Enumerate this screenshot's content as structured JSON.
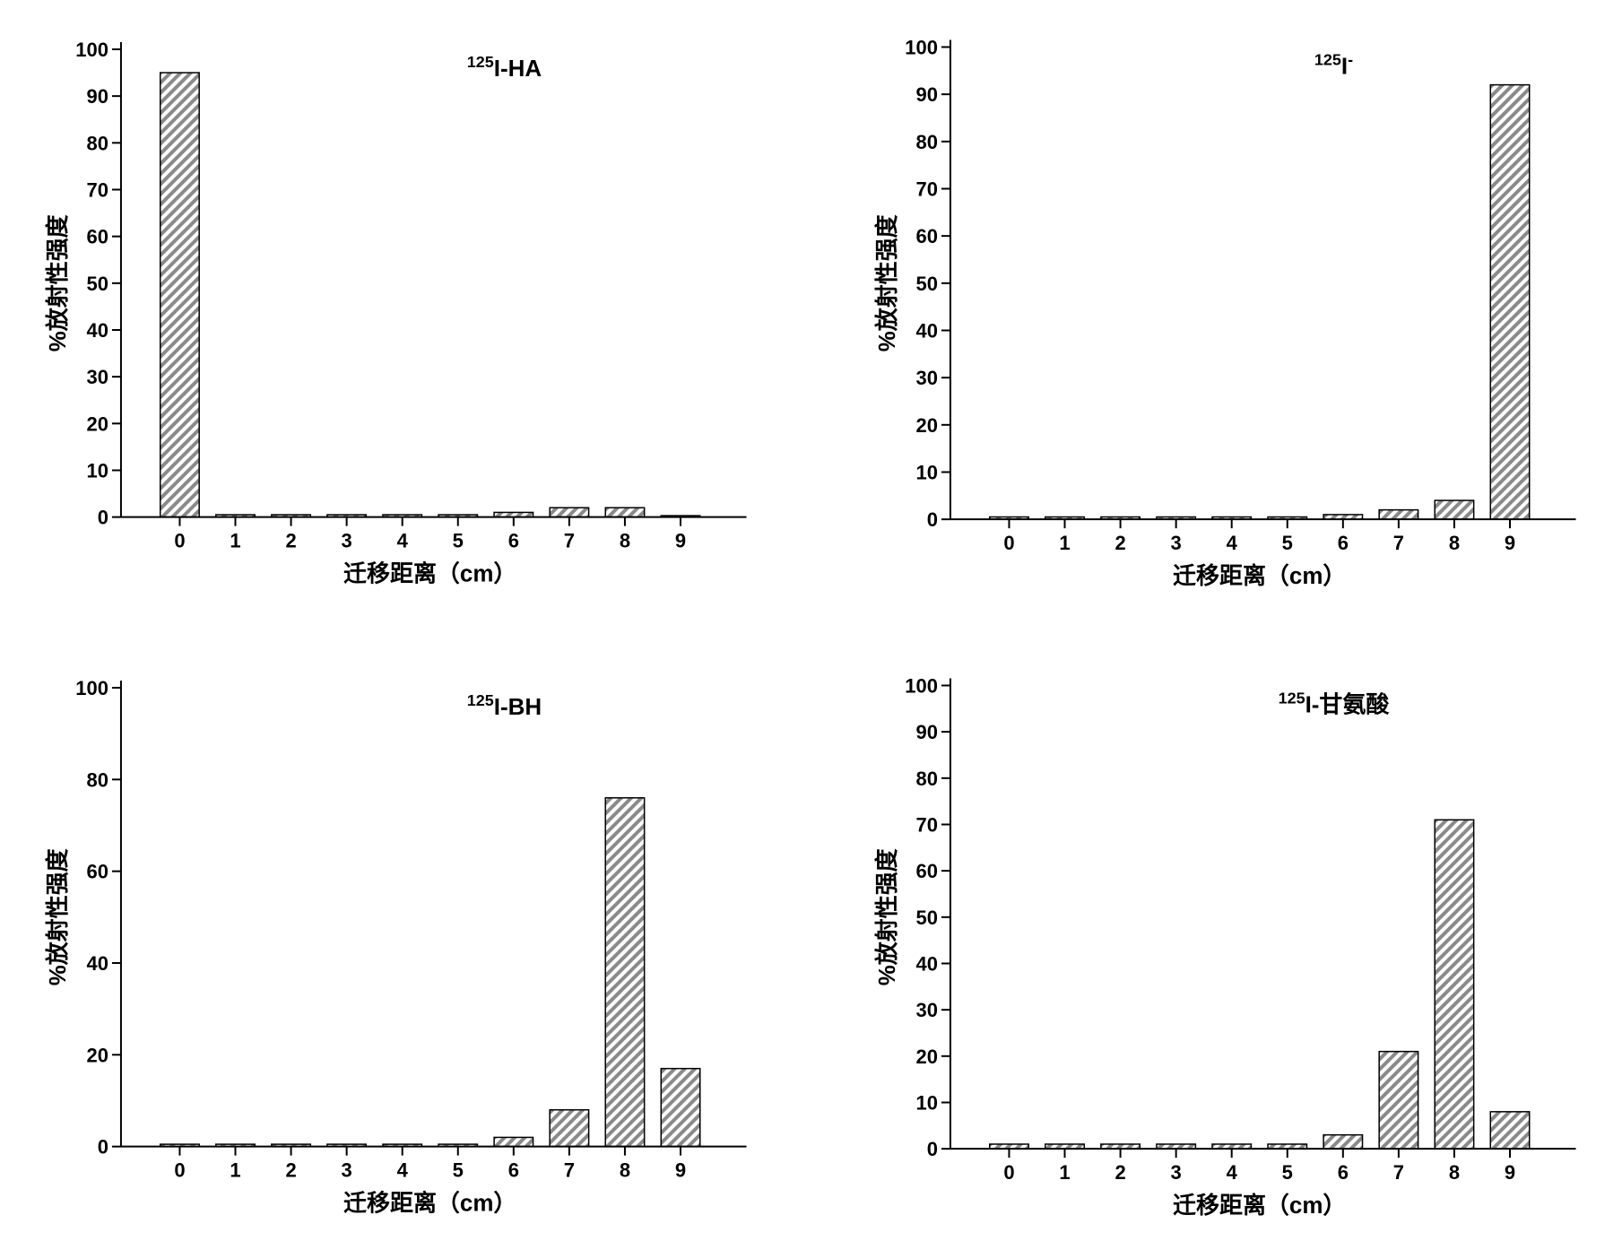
{
  "figure": {
    "background_color": "#ffffff",
    "panels": [
      {
        "id": "topleft",
        "type": "bar",
        "title_parts": {
          "sup": "125",
          "main": "I-HA"
        },
        "categories": [
          0,
          1,
          2,
          3,
          4,
          5,
          6,
          7,
          8,
          9
        ],
        "values": [
          95,
          0.5,
          0.5,
          0.5,
          0.5,
          0.5,
          1,
          2,
          2,
          0.3
        ],
        "ylim": [
          0,
          100
        ],
        "ytick_step": 10,
        "xlabel": "迁移距离（cm）",
        "ylabel": "%放射性强度",
        "bar_fill": "#8a8a8a",
        "hatch_angle": 45,
        "bar_width": 0.7,
        "axis_color": "#000000",
        "tick_fontsize": 22,
        "label_fontsize": 26,
        "title_fontsize": 26
      },
      {
        "id": "topright",
        "type": "bar",
        "title_parts": {
          "sup": "125",
          "main": "I",
          "sup2": "-"
        },
        "categories": [
          0,
          1,
          2,
          3,
          4,
          5,
          6,
          7,
          8,
          9
        ],
        "values": [
          0.5,
          0.5,
          0.5,
          0.5,
          0.5,
          0.5,
          1,
          2,
          4,
          92
        ],
        "ylim": [
          0,
          100
        ],
        "ytick_step": 10,
        "xlabel": "迁移距离（cm）",
        "ylabel": "%放射性强度",
        "bar_fill": "#8a8a8a",
        "hatch_angle": 45,
        "bar_width": 0.7,
        "axis_color": "#000000",
        "tick_fontsize": 22,
        "label_fontsize": 26,
        "title_fontsize": 26
      },
      {
        "id": "bottomleft",
        "type": "bar",
        "title_parts": {
          "sup": "125",
          "main": "I-BH"
        },
        "categories": [
          0,
          1,
          2,
          3,
          4,
          5,
          6,
          7,
          8,
          9
        ],
        "values": [
          0.5,
          0.5,
          0.5,
          0.5,
          0.5,
          0.5,
          2,
          8,
          76,
          17
        ],
        "ylim": [
          0,
          100
        ],
        "ytick_step": 20,
        "xlabel": "迁移距离（cm）",
        "ylabel": "%放射性强度",
        "bar_fill": "#8a8a8a",
        "hatch_angle": 45,
        "bar_width": 0.7,
        "axis_color": "#000000",
        "tick_fontsize": 22,
        "label_fontsize": 26,
        "title_fontsize": 26
      },
      {
        "id": "bottomright",
        "type": "bar",
        "title_parts": {
          "sup": "125",
          "main": "I-甘氨酸"
        },
        "categories": [
          0,
          1,
          2,
          3,
          4,
          5,
          6,
          7,
          8,
          9
        ],
        "values": [
          1,
          1,
          1,
          1,
          1,
          1,
          3,
          21,
          71,
          8
        ],
        "ylim": [
          0,
          100
        ],
        "ytick_step": 10,
        "xlabel": "迁移距离（cm）",
        "ylabel": "%放射性强度",
        "bar_fill": "#8a8a8a",
        "hatch_angle": 45,
        "bar_width": 0.7,
        "axis_color": "#000000",
        "tick_fontsize": 22,
        "label_fontsize": 26,
        "title_fontsize": 26
      }
    ]
  },
  "labels": {
    "topleft_title_sup": "125",
    "topleft_title_main": "I-HA",
    "topright_title_sup": "125",
    "topright_title_main": "I",
    "topright_title_sup2": "-",
    "bottomleft_title_sup": "125",
    "bottomleft_title_main": "I-BH",
    "bottomright_title_sup": "125",
    "bottomright_title_main": "I-甘氨酸",
    "xlabel": "迁移距离（cm）",
    "ylabel": "%放射性强度"
  }
}
